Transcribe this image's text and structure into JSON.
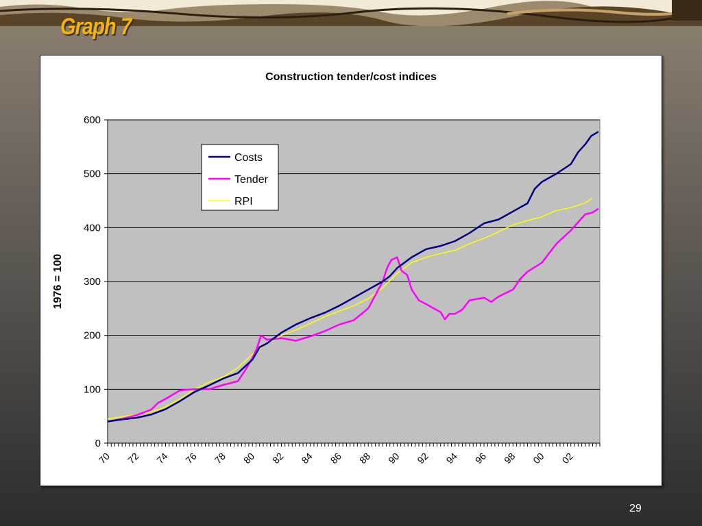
{
  "slide": {
    "title": "Graph 7",
    "page_number": "29"
  },
  "chart_data": {
    "type": "line",
    "title": "Construction tender/cost indices",
    "ylabel": "1976 = 100",
    "xlabel": "",
    "ylim": [
      0,
      600
    ],
    "yticks": [
      0,
      100,
      200,
      300,
      400,
      500,
      600
    ],
    "xlim": [
      1970,
      2004
    ],
    "xtick_labels": [
      "70",
      "72",
      "74",
      "76",
      "78",
      "80",
      "82",
      "84",
      "86",
      "88",
      "90",
      "92",
      "94",
      "96",
      "98",
      "00",
      "02"
    ],
    "grid": true,
    "plot_background": "#c0c0c0",
    "legend_position": "top-left",
    "series": [
      {
        "name": "Costs",
        "color": "#000080",
        "x": [
          1970,
          1971,
          1972,
          1973,
          1974,
          1975,
          1976,
          1977,
          1978,
          1979,
          1980,
          1980.5,
          1981,
          1982,
          1983,
          1984,
          1985,
          1986,
          1987,
          1988,
          1989,
          1989.5,
          1990,
          1991,
          1992,
          1993,
          1994,
          1995,
          1996,
          1997,
          1998,
          1999,
          1999.5,
          2000,
          2001,
          2002,
          2002.5,
          2003,
          2003.4,
          2003.9
        ],
        "values": [
          40,
          44,
          47,
          53,
          63,
          78,
          95,
          107,
          120,
          130,
          155,
          178,
          185,
          205,
          220,
          232,
          242,
          255,
          270,
          285,
          300,
          310,
          325,
          345,
          360,
          366,
          375,
          390,
          408,
          415,
          430,
          445,
          472,
          485,
          500,
          518,
          540,
          555,
          570,
          578
        ]
      },
      {
        "name": "Tender",
        "color": "#ff00ff",
        "x": [
          1970,
          1971,
          1972,
          1973,
          1973.5,
          1974,
          1975,
          1976,
          1977,
          1978,
          1979,
          1979.5,
          1980,
          1980.3,
          1980.6,
          1981,
          1982,
          1983,
          1984,
          1985,
          1986,
          1987,
          1988,
          1988.5,
          1989,
          1989.3,
          1989.6,
          1990,
          1990.3,
          1990.7,
          1991,
          1991.5,
          1992,
          1993,
          1993.3,
          1993.6,
          1994,
          1994.5,
          1995,
          1996,
          1996.5,
          1997,
          1998,
          1998.5,
          1999,
          2000,
          2001,
          2002,
          2002.5,
          2003,
          2003.5,
          2003.9
        ],
        "values": [
          40,
          45,
          52,
          62,
          75,
          82,
          98,
          100,
          100,
          108,
          115,
          135,
          158,
          175,
          200,
          192,
          195,
          190,
          198,
          208,
          220,
          228,
          250,
          275,
          300,
          325,
          340,
          345,
          320,
          312,
          285,
          265,
          258,
          243,
          230,
          240,
          240,
          248,
          265,
          270,
          262,
          272,
          285,
          305,
          318,
          335,
          370,
          395,
          410,
          425,
          428,
          435
        ]
      },
      {
        "name": "RPI",
        "color": "#ffff00",
        "x": [
          1970,
          1971,
          1972,
          1973,
          1974,
          1975,
          1976,
          1977,
          1978,
          1979,
          1980,
          1981,
          1982,
          1983,
          1984,
          1985,
          1986,
          1987,
          1988,
          1989,
          1990,
          1991,
          1992,
          1993,
          1994,
          1995,
          1996,
          1997,
          1998,
          1999,
          2000,
          2001,
          2002,
          2003,
          2003.5
        ],
        "values": [
          45,
          49,
          53,
          58,
          67,
          82,
          100,
          113,
          123,
          140,
          165,
          185,
          200,
          210,
          222,
          235,
          245,
          255,
          268,
          288,
          315,
          335,
          345,
          352,
          358,
          370,
          380,
          392,
          405,
          413,
          420,
          432,
          437,
          446,
          455
        ]
      }
    ]
  }
}
